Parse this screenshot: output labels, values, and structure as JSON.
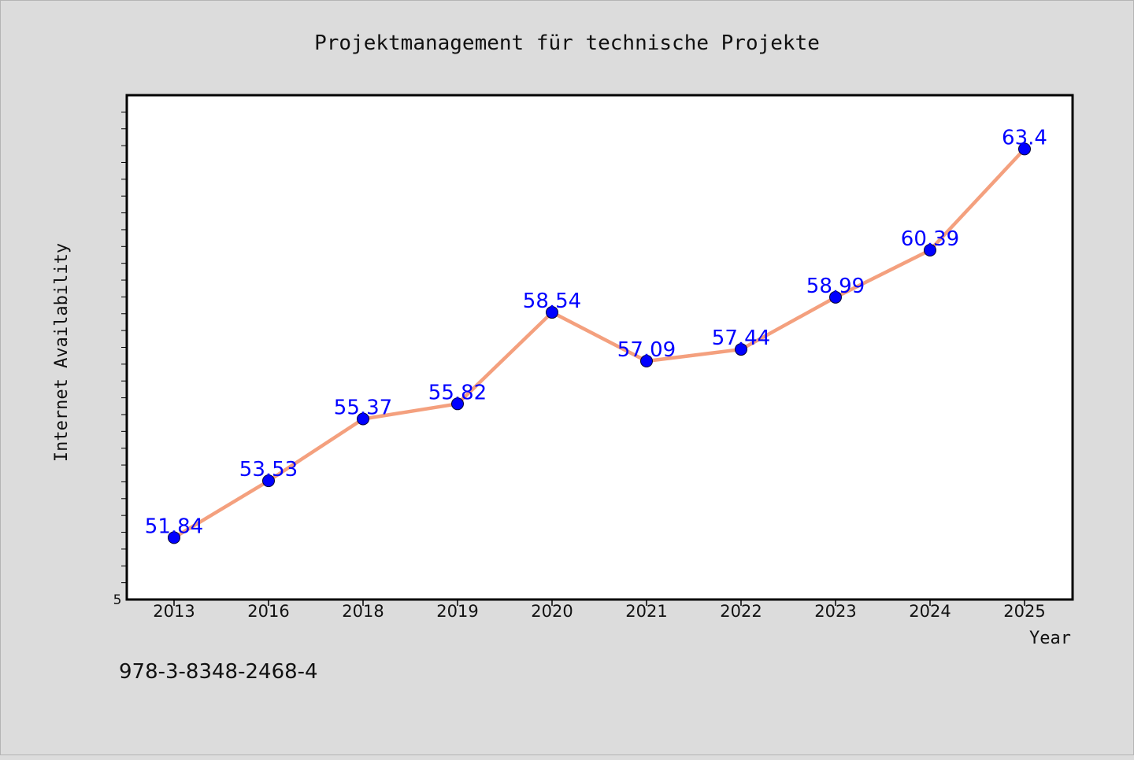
{
  "chart_data": {
    "type": "line",
    "title": "Projektmanagement für technische Projekte",
    "xlabel": "Year",
    "ylabel": "Internet Availability",
    "categories": [
      "2013",
      "2016",
      "2018",
      "2019",
      "2020",
      "2021",
      "2022",
      "2023",
      "2024",
      "2025"
    ],
    "series": [
      {
        "values": [
          51.84,
          53.53,
          55.37,
          55.82,
          58.54,
          57.09,
          57.44,
          58.99,
          60.39,
          63.4
        ],
        "data_labels": [
          "51.84",
          "53.53",
          "55.37",
          "55.82",
          "58.54",
          "57.09",
          "57.44",
          "58.99",
          "60.39",
          "63.4"
        ]
      }
    ],
    "ylim": [
      50,
      65
    ],
    "y_tick_label": "5",
    "grid": false,
    "line_color": "#f4a07e",
    "marker_color": "#0000ff",
    "label_color": "#0000ff",
    "background_color": "#dcdcdc",
    "plot_background": "#ffffff"
  },
  "footer": {
    "isbn": "978-3-8348-2468-4"
  }
}
